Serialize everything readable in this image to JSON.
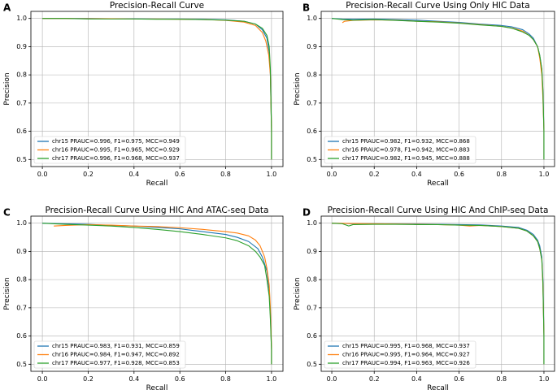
{
  "chart_data": [
    {
      "type": "line",
      "panel": "A",
      "title": "Precision-Recall Curve",
      "xlabel": "Recall",
      "ylabel": "Precision",
      "xlim": [
        -0.05,
        1.05
      ],
      "ylim": [
        0.475,
        1.025
      ],
      "xticks": [
        "0.0",
        "0.2",
        "0.4",
        "0.6",
        "0.8",
        "1.0"
      ],
      "yticks": [
        "0.5",
        "0.6",
        "0.7",
        "0.8",
        "0.9",
        "1.0"
      ],
      "grid": true,
      "legend_position": "lower-left",
      "series": [
        {
          "name": "chr15 PRAUC=0.996, F1=0.975, MCC=0.949",
          "color": "#1f77b4",
          "x": [
            0.0,
            0.1,
            0.2,
            0.3,
            0.4,
            0.5,
            0.6,
            0.7,
            0.8,
            0.88,
            0.93,
            0.96,
            0.98,
            0.99,
            0.995,
            1.0,
            1.0
          ],
          "y": [
            1.0,
            1.0,
            1.0,
            0.999,
            0.999,
            0.998,
            0.998,
            0.997,
            0.995,
            0.99,
            0.98,
            0.96,
            0.93,
            0.88,
            0.8,
            0.6,
            0.5
          ]
        },
        {
          "name": "chr16 PRAUC=0.995, F1=0.965, MCC=0.929",
          "color": "#ff7f0e",
          "x": [
            0.0,
            0.1,
            0.2,
            0.3,
            0.4,
            0.5,
            0.6,
            0.7,
            0.8,
            0.88,
            0.93,
            0.96,
            0.975,
            0.988,
            0.995,
            1.0,
            1.0
          ],
          "y": [
            1.0,
            1.0,
            0.999,
            0.999,
            0.998,
            0.998,
            0.997,
            0.996,
            0.993,
            0.987,
            0.975,
            0.95,
            0.92,
            0.87,
            0.8,
            0.6,
            0.5
          ]
        },
        {
          "name": "chr17 PRAUC=0.996, F1=0.968, MCC=0.937",
          "color": "#2ca02c",
          "x": [
            0.0,
            0.1,
            0.2,
            0.3,
            0.4,
            0.5,
            0.6,
            0.7,
            0.8,
            0.88,
            0.93,
            0.96,
            0.98,
            0.99,
            0.995,
            1.0,
            1.0
          ],
          "y": [
            1.0,
            1.0,
            0.998,
            0.998,
            0.998,
            0.997,
            0.997,
            0.996,
            0.994,
            0.99,
            0.98,
            0.965,
            0.94,
            0.9,
            0.82,
            0.6,
            0.5
          ]
        }
      ]
    },
    {
      "type": "line",
      "panel": "B",
      "title": "Precision-Recall Curve Using Only HIC Data",
      "xlabel": "Recall",
      "ylabel": "Precision",
      "xlim": [
        -0.05,
        1.05
      ],
      "ylim": [
        0.475,
        1.025
      ],
      "xticks": [
        "0.0",
        "0.2",
        "0.4",
        "0.6",
        "0.8",
        "1.0"
      ],
      "yticks": [
        "0.5",
        "0.6",
        "0.7",
        "0.8",
        "0.9",
        "1.0"
      ],
      "grid": true,
      "legend_position": "lower-left",
      "series": [
        {
          "name": "chr15 PRAUC=0.982, F1=0.932, MCC=0.868",
          "color": "#1f77b4",
          "x": [
            0.0,
            0.05,
            0.1,
            0.2,
            0.3,
            0.4,
            0.5,
            0.6,
            0.7,
            0.8,
            0.85,
            0.9,
            0.93,
            0.95,
            0.97,
            0.98,
            0.99,
            0.995,
            1.0,
            1.0
          ],
          "y": [
            1.0,
            0.998,
            0.997,
            0.998,
            0.996,
            0.994,
            0.99,
            0.986,
            0.98,
            0.975,
            0.97,
            0.96,
            0.945,
            0.93,
            0.9,
            0.87,
            0.82,
            0.74,
            0.6,
            0.5
          ]
        },
        {
          "name": "chr16 PRAUC=0.978, F1=0.942, MCC=0.883",
          "color": "#ff7f0e",
          "x": [
            0.05,
            0.06,
            0.1,
            0.2,
            0.3,
            0.4,
            0.5,
            0.6,
            0.7,
            0.8,
            0.85,
            0.9,
            0.93,
            0.95,
            0.97,
            0.98,
            0.99,
            0.995,
            1.0,
            1.0
          ],
          "y": [
            0.985,
            0.99,
            0.993,
            0.995,
            0.994,
            0.99,
            0.988,
            0.984,
            0.978,
            0.972,
            0.966,
            0.955,
            0.94,
            0.925,
            0.9,
            0.86,
            0.8,
            0.72,
            0.6,
            0.5
          ]
        },
        {
          "name": "chr17 PRAUC=0.982, F1=0.945, MCC=0.888",
          "color": "#2ca02c",
          "x": [
            0.0,
            0.05,
            0.1,
            0.2,
            0.3,
            0.4,
            0.5,
            0.6,
            0.7,
            0.8,
            0.85,
            0.9,
            0.93,
            0.95,
            0.97,
            0.98,
            0.99,
            0.995,
            1.0,
            1.0
          ],
          "y": [
            1.0,
            0.996,
            0.994,
            0.996,
            0.993,
            0.99,
            0.987,
            0.983,
            0.977,
            0.972,
            0.965,
            0.952,
            0.94,
            0.925,
            0.9,
            0.87,
            0.82,
            0.75,
            0.6,
            0.5
          ]
        }
      ]
    },
    {
      "type": "line",
      "panel": "C",
      "title": "Precision-Recall Curve Using HIC And ATAC-seq Data",
      "xlabel": "Recall",
      "ylabel": "Precision",
      "xlim": [
        -0.05,
        1.05
      ],
      "ylim": [
        0.475,
        1.025
      ],
      "xticks": [
        "0.0",
        "0.2",
        "0.4",
        "0.6",
        "0.8",
        "1.0"
      ],
      "yticks": [
        "0.5",
        "0.6",
        "0.7",
        "0.8",
        "0.9",
        "1.0"
      ],
      "grid": true,
      "legend_position": "lower-left",
      "series": [
        {
          "name": "chr15 PRAUC=0.983, F1=0.931, MCC=0.859",
          "color": "#1f77b4",
          "x": [
            0.0,
            0.1,
            0.2,
            0.3,
            0.4,
            0.5,
            0.6,
            0.7,
            0.75,
            0.8,
            0.85,
            0.9,
            0.94,
            0.96,
            0.98,
            0.99,
            0.995,
            1.0,
            1.0
          ],
          "y": [
            1.0,
            0.998,
            0.996,
            0.992,
            0.99,
            0.985,
            0.98,
            0.97,
            0.965,
            0.96,
            0.95,
            0.935,
            0.91,
            0.88,
            0.83,
            0.76,
            0.68,
            0.55,
            0.5
          ]
        },
        {
          "name": "chr16 PRAUC=0.984, F1=0.947, MCC=0.892",
          "color": "#ff7f0e",
          "x": [
            0.05,
            0.1,
            0.2,
            0.3,
            0.4,
            0.5,
            0.6,
            0.7,
            0.8,
            0.85,
            0.9,
            0.93,
            0.95,
            0.97,
            0.98,
            0.99,
            0.995,
            1.0,
            1.0
          ],
          "y": [
            0.99,
            0.992,
            0.995,
            0.993,
            0.99,
            0.988,
            0.984,
            0.978,
            0.97,
            0.965,
            0.955,
            0.94,
            0.92,
            0.88,
            0.84,
            0.78,
            0.7,
            0.56,
            0.5
          ]
        },
        {
          "name": "chr17 PRAUC=0.977, F1=0.928, MCC=0.853",
          "color": "#2ca02c",
          "x": [
            0.0,
            0.1,
            0.2,
            0.3,
            0.4,
            0.5,
            0.6,
            0.7,
            0.8,
            0.85,
            0.9,
            0.93,
            0.95,
            0.97,
            0.98,
            0.99,
            0.995,
            1.0,
            1.0
          ],
          "y": [
            1.0,
            0.996,
            0.993,
            0.99,
            0.985,
            0.978,
            0.97,
            0.96,
            0.948,
            0.938,
            0.92,
            0.9,
            0.88,
            0.85,
            0.8,
            0.74,
            0.66,
            0.55,
            0.5
          ]
        }
      ]
    },
    {
      "type": "line",
      "panel": "D",
      "title": "Precision-Recall Curve Using HIC And ChIP-seq Data",
      "xlabel": "Recall",
      "ylabel": "Precision",
      "xlim": [
        -0.05,
        1.05
      ],
      "ylim": [
        0.475,
        1.025
      ],
      "xticks": [
        "0.0",
        "0.2",
        "0.4",
        "0.6",
        "0.8",
        "1.0"
      ],
      "yticks": [
        "0.5",
        "0.6",
        "0.7",
        "0.8",
        "0.9",
        "1.0"
      ],
      "grid": true,
      "legend_position": "lower-left",
      "series": [
        {
          "name": "chr15 PRAUC=0.995, F1=0.968, MCC=0.937",
          "color": "#1f77b4",
          "x": [
            0.0,
            0.1,
            0.2,
            0.3,
            0.4,
            0.5,
            0.6,
            0.7,
            0.8,
            0.88,
            0.92,
            0.95,
            0.97,
            0.98,
            0.99,
            0.995,
            1.0,
            1.0
          ],
          "y": [
            1.0,
            0.998,
            0.998,
            0.997,
            0.997,
            0.996,
            0.995,
            0.994,
            0.99,
            0.985,
            0.975,
            0.96,
            0.94,
            0.92,
            0.88,
            0.8,
            0.6,
            0.5
          ]
        },
        {
          "name": "chr16 PRAUC=0.995, F1=0.964, MCC=0.927",
          "color": "#ff7f0e",
          "x": [
            0.0,
            0.1,
            0.2,
            0.3,
            0.4,
            0.5,
            0.6,
            0.65,
            0.7,
            0.8,
            0.88,
            0.92,
            0.95,
            0.97,
            0.98,
            0.99,
            0.995,
            1.0,
            1.0
          ],
          "y": [
            1.0,
            0.999,
            0.998,
            0.997,
            0.996,
            0.995,
            0.993,
            0.99,
            0.992,
            0.988,
            0.982,
            0.972,
            0.955,
            0.935,
            0.91,
            0.87,
            0.78,
            0.6,
            0.5
          ]
        },
        {
          "name": "chr17 PRAUC=0.994, F1=0.963, MCC=0.926",
          "color": "#2ca02c",
          "x": [
            0.0,
            0.05,
            0.08,
            0.1,
            0.2,
            0.3,
            0.4,
            0.5,
            0.6,
            0.7,
            0.8,
            0.88,
            0.92,
            0.95,
            0.97,
            0.98,
            0.99,
            0.995,
            1.0,
            1.0
          ],
          "y": [
            1.0,
            0.998,
            0.99,
            0.995,
            0.996,
            0.996,
            0.995,
            0.995,
            0.993,
            0.992,
            0.988,
            0.982,
            0.972,
            0.955,
            0.935,
            0.91,
            0.87,
            0.79,
            0.6,
            0.5
          ]
        }
      ]
    }
  ]
}
